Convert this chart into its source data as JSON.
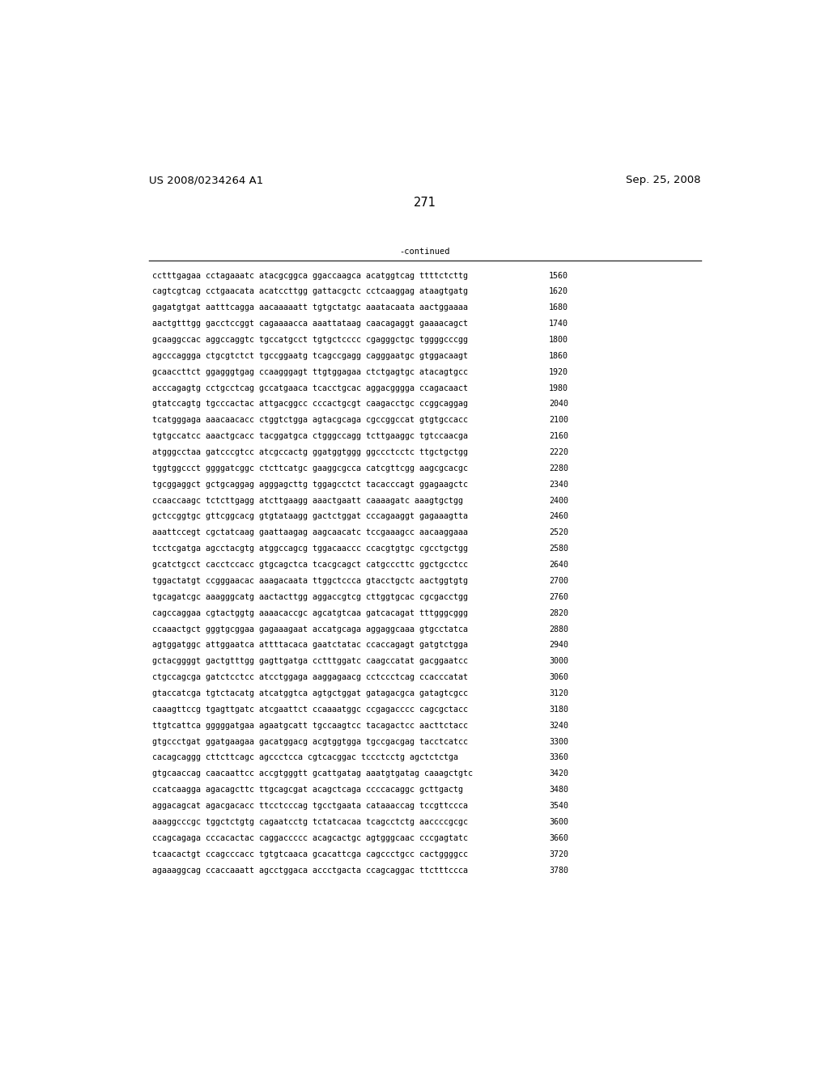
{
  "header_left": "US 2008/0234264 A1",
  "header_right": "Sep. 25, 2008",
  "page_number": "271",
  "continued_label": "-continued",
  "background_color": "#ffffff",
  "text_color": "#000000",
  "font_size_header": 9.5,
  "font_size_body": 7.2,
  "font_size_page": 10.5,
  "sequence_lines": [
    [
      "cctttgagaa cctagaaatc atacgcggca ggaccaagca acatggtcag ttttctcttg",
      "1560"
    ],
    [
      "cagtcgtcag cctgaacata acatccttgg gattacgctc cctcaaggag ataagtgatg",
      "1620"
    ],
    [
      "gagatgtgat aatttcagga aacaaaaatt tgtgctatgc aaatacaata aactggaaaa",
      "1680"
    ],
    [
      "aactgtttgg gacctccggt cagaaaacca aaattataag caacagaggt gaaaacagct",
      "1740"
    ],
    [
      "gcaaggccac aggccaggtc tgccatgcct tgtgctcccc cgagggctgc tggggcccgg",
      "1800"
    ],
    [
      "agcccaggga ctgcgtctct tgccggaatg tcagccgagg cagggaatgc gtggacaagt",
      "1860"
    ],
    [
      "gcaaccttct ggagggtgag ccaagggagt ttgtggagaa ctctgagtgc atacagtgcc",
      "1920"
    ],
    [
      "acccagagtg cctgcctcag gccatgaaca tcacctgcac aggacgggga ccagacaact",
      "1980"
    ],
    [
      "gtatccagtg tgcccactac attgacggcc cccactgcgt caagacctgc ccggcaggag",
      "2040"
    ],
    [
      "tcatgggaga aaacaacacc ctggtctgga agtacgcaga cgccggccat gtgtgccacc",
      "2100"
    ],
    [
      "tgtgccatcc aaactgcacc tacggatgca ctgggccagg tcttgaaggc tgtccaacga",
      "2160"
    ],
    [
      "atgggcctaa gatcccgtcc atcgccactg ggatggtggg ggccctcctc ttgctgctgg",
      "2220"
    ],
    [
      "tggtggccct ggggatcggc ctcttcatgc gaaggcgcca catcgttcgg aagcgcacgc",
      "2280"
    ],
    [
      "tgcggaggct gctgcaggag agggagcttg tggagcctct tacacccagt ggagaagctc",
      "2340"
    ],
    [
      "ccaaccaagc tctcttgagg atcttgaagg aaactgaatt caaaagatc aaagtgctgg",
      "2400"
    ],
    [
      "gctccggtgc gttcggcacg gtgtataagg gactctggat cccagaaggt gagaaagtta",
      "2460"
    ],
    [
      "aaattccegt cgctatcaag gaattaagag aagcaacatc tccgaaagcc aacaaggaaa",
      "2520"
    ],
    [
      "tcctcgatga agcctacgtg atggccagcg tggacaaccc ccacgtgtgc cgcctgctgg",
      "2580"
    ],
    [
      "gcatctgcct cacctccacc gtgcagctca tcacgcagct catgcccttc ggctgcctcc",
      "2640"
    ],
    [
      "tggactatgt ccgggaacac aaagacaata ttggctccca gtacctgctc aactggtgtg",
      "2700"
    ],
    [
      "tgcagatcgc aaagggcatg aactacttgg aggaccgtcg cttggtgcac cgcgacctgg",
      "2760"
    ],
    [
      "cagccaggaa cgtactggtg aaaacaccgc agcatgtcaa gatcacagat tttgggcggg",
      "2820"
    ],
    [
      "ccaaactgct gggtgcggaa gagaaagaat accatgcaga aggaggcaaa gtgcctatca",
      "2880"
    ],
    [
      "agtggatggc attggaatca attttacaca gaatctatac ccaccagagt gatgtctgga",
      "2940"
    ],
    [
      "gctacggggt gactgtttgg gagttgatga cctttggatc caagccatat gacggaatcc",
      "3000"
    ],
    [
      "ctgccagcga gatctcctcc atcctggaga aaggagaacg cctccctcag ccacccatat",
      "3060"
    ],
    [
      "gtaccatcga tgtctacatg atcatggtca agtgctggat gatagacgca gatagtcgcc",
      "3120"
    ],
    [
      "caaagttccg tgagttgatc atcgaattct ccaaaatggc ccgagacccc cagcgctacc",
      "3180"
    ],
    [
      "ttgtcattca gggggatgaa agaatgcatt tgccaagtcc tacagactcc aacttctacc",
      "3240"
    ],
    [
      "gtgccctgat ggatgaagaa gacatggacg acgtggtgga tgccgacgag tacctcatcc",
      "3300"
    ],
    [
      "cacagcaggg cttcttcagc agccctcca cgtcacggac tccctcctg agctctctga",
      "3360"
    ],
    [
      "gtgcaaccag caacaattcc accgtgggtt gcattgatag aaatgtgatag caaagctgtc",
      "3420"
    ],
    [
      "ccatcaagga agacagcttc ttgcagcgat acagctcaga ccccacaggc gcttgactg",
      "3480"
    ],
    [
      "aggacagcat agacgacacc ttcctcccag tgcctgaata cataaaccag tccgttccca",
      "3540"
    ],
    [
      "aaaggcccgc tggctctgtg cagaatcctg tctatcacaa tcagcctctg aaccccgcgc",
      "3600"
    ],
    [
      "ccagcagaga cccacactac caggaccccc acagcactgc agtgggcaac cccgagtatc",
      "3660"
    ],
    [
      "tcaacactgt ccagcccacc tgtgtcaaca gcacattcga cagccctgcc cactggggcc",
      "3720"
    ],
    [
      "agaaaggcag ccaccaaatt agcctggaca accctgacta ccagcaggac ttctttccca",
      "3780"
    ]
  ]
}
